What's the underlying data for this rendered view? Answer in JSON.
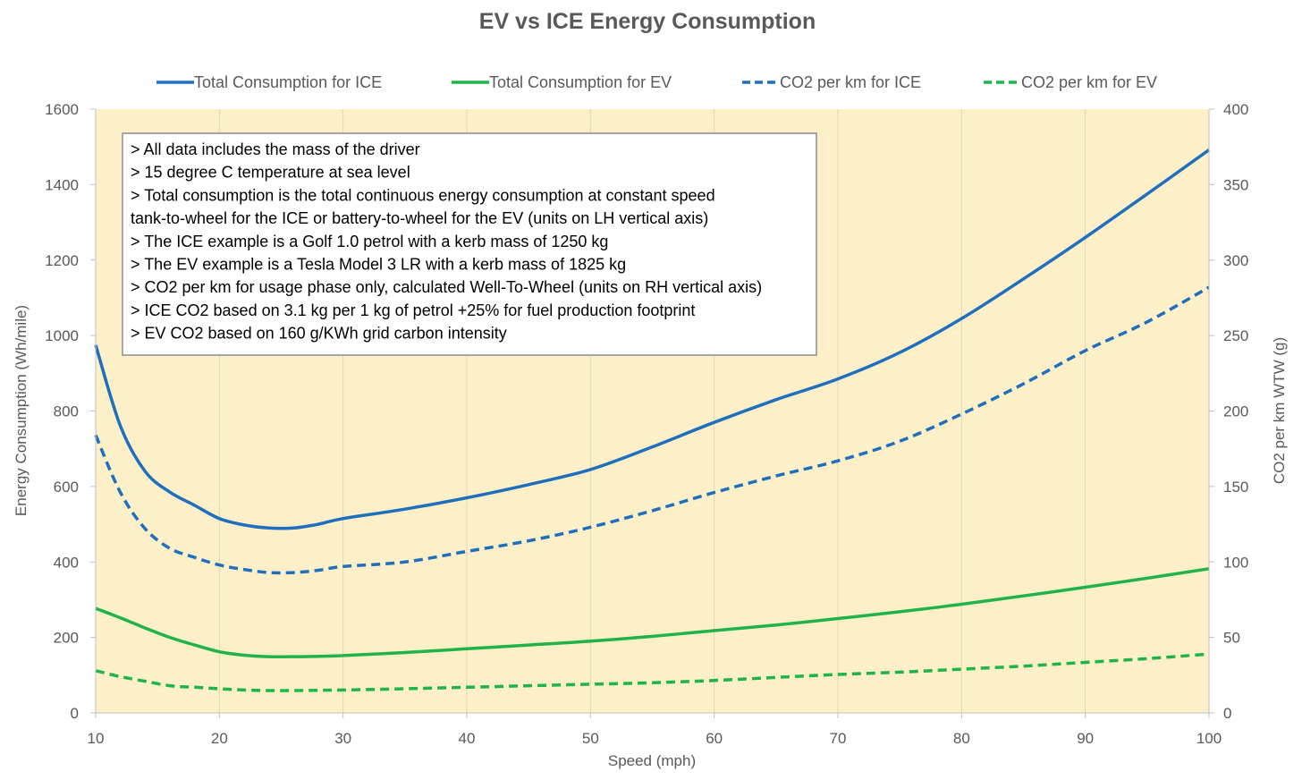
{
  "chart_data": {
    "type": "line",
    "title": "EV vs ICE Energy Consumption",
    "xlabel": "Speed (mph)",
    "ylabel": "Energy Consumption (Wh/mile)",
    "y2label": "CO2 per km WTW (g)",
    "xlim": [
      10,
      100
    ],
    "ylim": [
      0,
      1600
    ],
    "y2lim": [
      0,
      400
    ],
    "xticks": [
      10,
      20,
      30,
      40,
      50,
      60,
      70,
      80,
      90,
      100
    ],
    "yticks": [
      0,
      200,
      400,
      600,
      800,
      1000,
      1200,
      1400,
      1600
    ],
    "y2ticks": [
      0,
      50,
      100,
      150,
      200,
      250,
      300,
      350,
      400
    ],
    "grid": "vertical",
    "legend": "top",
    "x": [
      10,
      12,
      14,
      16,
      18,
      20,
      22,
      24,
      26,
      28,
      30,
      35,
      40,
      45,
      50,
      55,
      60,
      65,
      70,
      75,
      80,
      85,
      90,
      95,
      100
    ],
    "series": [
      {
        "name": "Total Consumption for ICE",
        "axis": "left",
        "style": "solid",
        "color": "#1f6fbf",
        "values": [
          975,
          760,
          640,
          585,
          550,
          515,
          498,
          490,
          490,
          500,
          515,
          540,
          570,
          605,
          645,
          705,
          770,
          830,
          885,
          955,
          1045,
          1150,
          1260,
          1375,
          1492
        ]
      },
      {
        "name": "Total Consumption for EV",
        "axis": "left",
        "style": "solid",
        "color": "#1fb34a",
        "values": [
          277,
          252,
          225,
          200,
          180,
          162,
          153,
          149,
          149,
          150,
          152,
          160,
          170,
          180,
          190,
          203,
          218,
          233,
          250,
          268,
          288,
          310,
          333,
          357,
          382
        ]
      },
      {
        "name": "CO2 per km for ICE",
        "axis": "right",
        "style": "dashed",
        "color": "#1f6fbf",
        "values": [
          184,
          146,
          122,
          109,
          103,
          98,
          95,
          93,
          93,
          94.5,
          97,
          100,
          107,
          114,
          123,
          134,
          146,
          157,
          167,
          180,
          198,
          218,
          240,
          259,
          282
        ]
      },
      {
        "name": "CO2 per km for EV",
        "axis": "right",
        "style": "dashed",
        "color": "#1fb34a",
        "values": [
          28,
          24,
          21,
          18,
          17,
          16,
          15.2,
          14.8,
          14.8,
          15,
          15.2,
          16,
          17,
          18,
          19,
          20,
          21.5,
          23.5,
          25.5,
          27,
          29,
          31,
          33.5,
          36,
          39
        ]
      }
    ],
    "annotations": [
      "> All  data includes the mass of the driver",
      "> 15 degree C temperature at sea level",
      "> Total consumption is the total continuous energy consumption at constant speed",
      "tank-to-wheel for the ICE or battery-to-wheel for the EV (units on LH vertical axis)",
      "> The ICE example is a Golf 1.0 petrol with a kerb mass of 1250 kg",
      "> The EV example is a Tesla Model 3 LR with a kerb mass of 1825 kg",
      "> CO2 per km for usage phase only, calculated Well-To-Wheel  (units on RH vertical axis)",
      "> ICE CO2 based on 3.1 kg per 1 kg of petrol +25% for fuel production footprint",
      "> EV CO2 based on 160 g/KWh grid carbon intensity"
    ],
    "colors": {
      "plot_background": "#fdf0c8",
      "grid": "#e2d6b4",
      "axis_text": "#595959",
      "note_border": "#8c8c8c"
    }
  }
}
